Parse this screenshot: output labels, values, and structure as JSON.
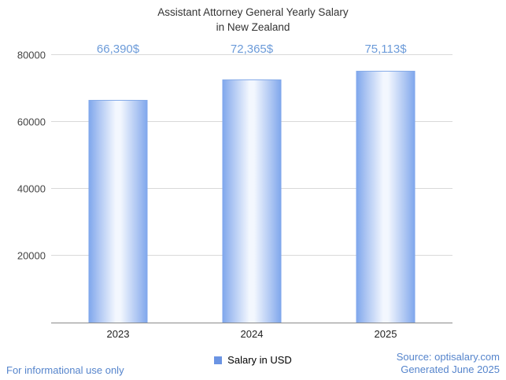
{
  "title": {
    "line1": "Assistant Attorney General Yearly Salary",
    "line2": "in New Zealand"
  },
  "chart_data": {
    "type": "bar",
    "title": "Assistant Attorney General Yearly Salary in New Zealand",
    "categories": [
      "2023",
      "2024",
      "2025"
    ],
    "values": [
      66390,
      72365,
      75113
    ],
    "value_labels": [
      "66,390$",
      "72,365$",
      "75,113$"
    ],
    "series_name": "Salary in USD",
    "xlabel": "",
    "ylabel": "",
    "ylim": [
      0,
      80000
    ],
    "yticks": [
      20000,
      40000,
      60000,
      80000
    ],
    "grid": true,
    "legend_position": "bottom"
  },
  "legend": {
    "label": "Salary in USD",
    "swatch_color": "#6b94e3"
  },
  "footer": {
    "left": "For informational use only",
    "source": "Source: optisalary.com",
    "generated": "Generated June 2025"
  },
  "colors": {
    "annotation": "#6c9bd9",
    "footer_text": "#5685cc",
    "grid": "#d9d9d9",
    "bar_edge": "#7ea6ec",
    "axis_line": "#8a8a8a"
  }
}
